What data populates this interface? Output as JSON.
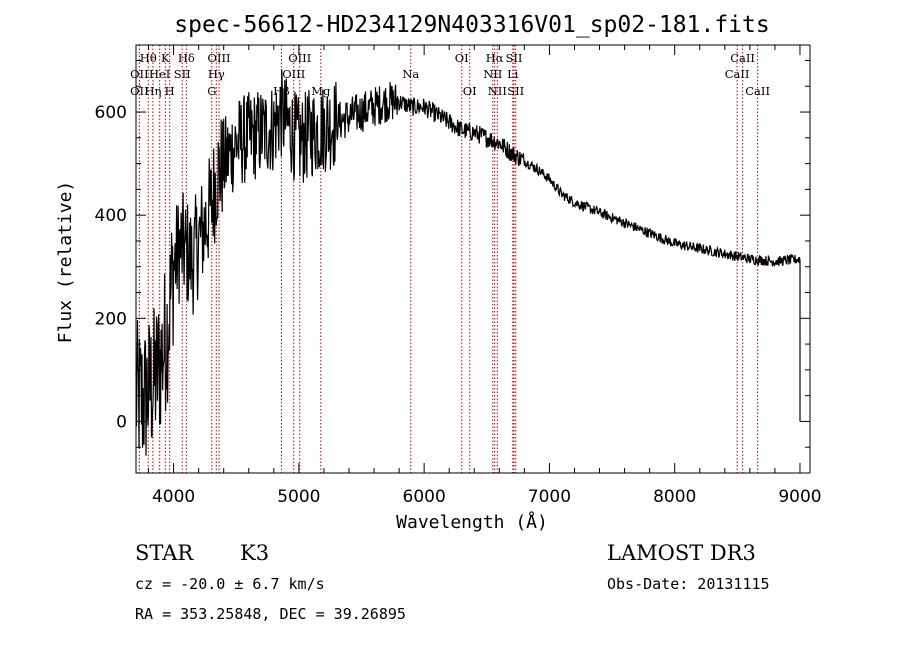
{
  "chart_data": {
    "type": "line",
    "title": "spec-56612-HD234129N403316V01_sp02-181.fits",
    "xlabel": "Wavelength (Å)",
    "ylabel": "Flux (relative)",
    "xlim": [
      3700,
      9080
    ],
    "ylim": [
      -100,
      730
    ],
    "xticks": [
      4000,
      5000,
      6000,
      7000,
      8000,
      9000
    ],
    "yticks": [
      0,
      200,
      400,
      600
    ],
    "series": [
      {
        "name": "spectrum",
        "x": [
          3700,
          3760,
          3800,
          3850,
          3900,
          3950,
          4000,
          4050,
          4100,
          4150,
          4200,
          4250,
          4300,
          4350,
          4400,
          4450,
          4500,
          4600,
          4700,
          4800,
          4850,
          4900,
          4950,
          5000,
          5100,
          5200,
          5300,
          5400,
          5500,
          5600,
          5700,
          5800,
          5900,
          6000,
          6100,
          6200,
          6300,
          6400,
          6500,
          6600,
          6700,
          6800,
          6900,
          7000,
          7100,
          7200,
          7400,
          7600,
          7800,
          8000,
          8200,
          8400,
          8600,
          8800,
          9000
        ],
        "y": [
          50,
          40,
          60,
          80,
          120,
          180,
          300,
          340,
          330,
          310,
          350,
          380,
          420,
          480,
          500,
          520,
          540,
          550,
          560,
          570,
          600,
          580,
          560,
          540,
          560,
          570,
          580,
          590,
          600,
          610,
          620,
          620,
          610,
          610,
          595,
          580,
          565,
          560,
          550,
          540,
          520,
          505,
          490,
          470,
          440,
          425,
          405,
          385,
          365,
          345,
          335,
          325,
          315,
          310,
          315
        ]
      }
    ],
    "lines": [
      {
        "label": "Hθ",
        "x": 3798,
        "row": 1
      },
      {
        "label": "OII",
        "x": 3727,
        "row": 2
      },
      {
        "label": "OII",
        "x": 3727,
        "row": 3
      },
      {
        "label": "K",
        "x": 3934,
        "row": 1
      },
      {
        "label": "HeI",
        "x": 3889,
        "row": 2
      },
      {
        "label": "Hη",
        "x": 3835,
        "row": 3
      },
      {
        "label": "Hδ",
        "x": 4102,
        "row": 1
      },
      {
        "label": "SII",
        "x": 4069,
        "row": 2
      },
      {
        "label": "H",
        "x": 3969,
        "row": 3
      },
      {
        "label": "OIII",
        "x": 4363,
        "row": 1
      },
      {
        "label": "Hγ",
        "x": 4341,
        "row": 2
      },
      {
        "label": "G",
        "x": 4305,
        "row": 3
      },
      {
        "label": "OIII",
        "x": 5007,
        "row": 1
      },
      {
        "label": "OIII",
        "x": 4959,
        "row": 2
      },
      {
        "label": "Hβ",
        "x": 4861,
        "row": 3
      },
      {
        "label": "Mg",
        "x": 5175,
        "row": 3
      },
      {
        "label": "Na",
        "x": 5893,
        "row": 2
      },
      {
        "label": "OI",
        "x": 6300,
        "row": 1
      },
      {
        "label": "OI",
        "x": 6364,
        "row": 3
      },
      {
        "label": "Hα",
        "x": 6563,
        "row": 1
      },
      {
        "label": "NII",
        "x": 6548,
        "row": 2
      },
      {
        "label": "NII",
        "x": 6584,
        "row": 3
      },
      {
        "label": "SII",
        "x": 6717,
        "row": 1
      },
      {
        "label": "Li",
        "x": 6708,
        "row": 2
      },
      {
        "label": "SII",
        "x": 6731,
        "row": 3
      },
      {
        "label": "CaII",
        "x": 8542,
        "row": 1
      },
      {
        "label": "CaII",
        "x": 8498,
        "row": 2
      },
      {
        "label": "CaII",
        "x": 8662,
        "row": 3
      }
    ]
  },
  "info": {
    "class": "STAR",
    "subclass": "K3",
    "survey": "LAMOST DR3",
    "cz": "cz = -20.0 ± 6.7 km/s",
    "obs_date": "Obs-Date: 20131115",
    "radec": "RA = 353.25848, DEC =  39.26895"
  }
}
